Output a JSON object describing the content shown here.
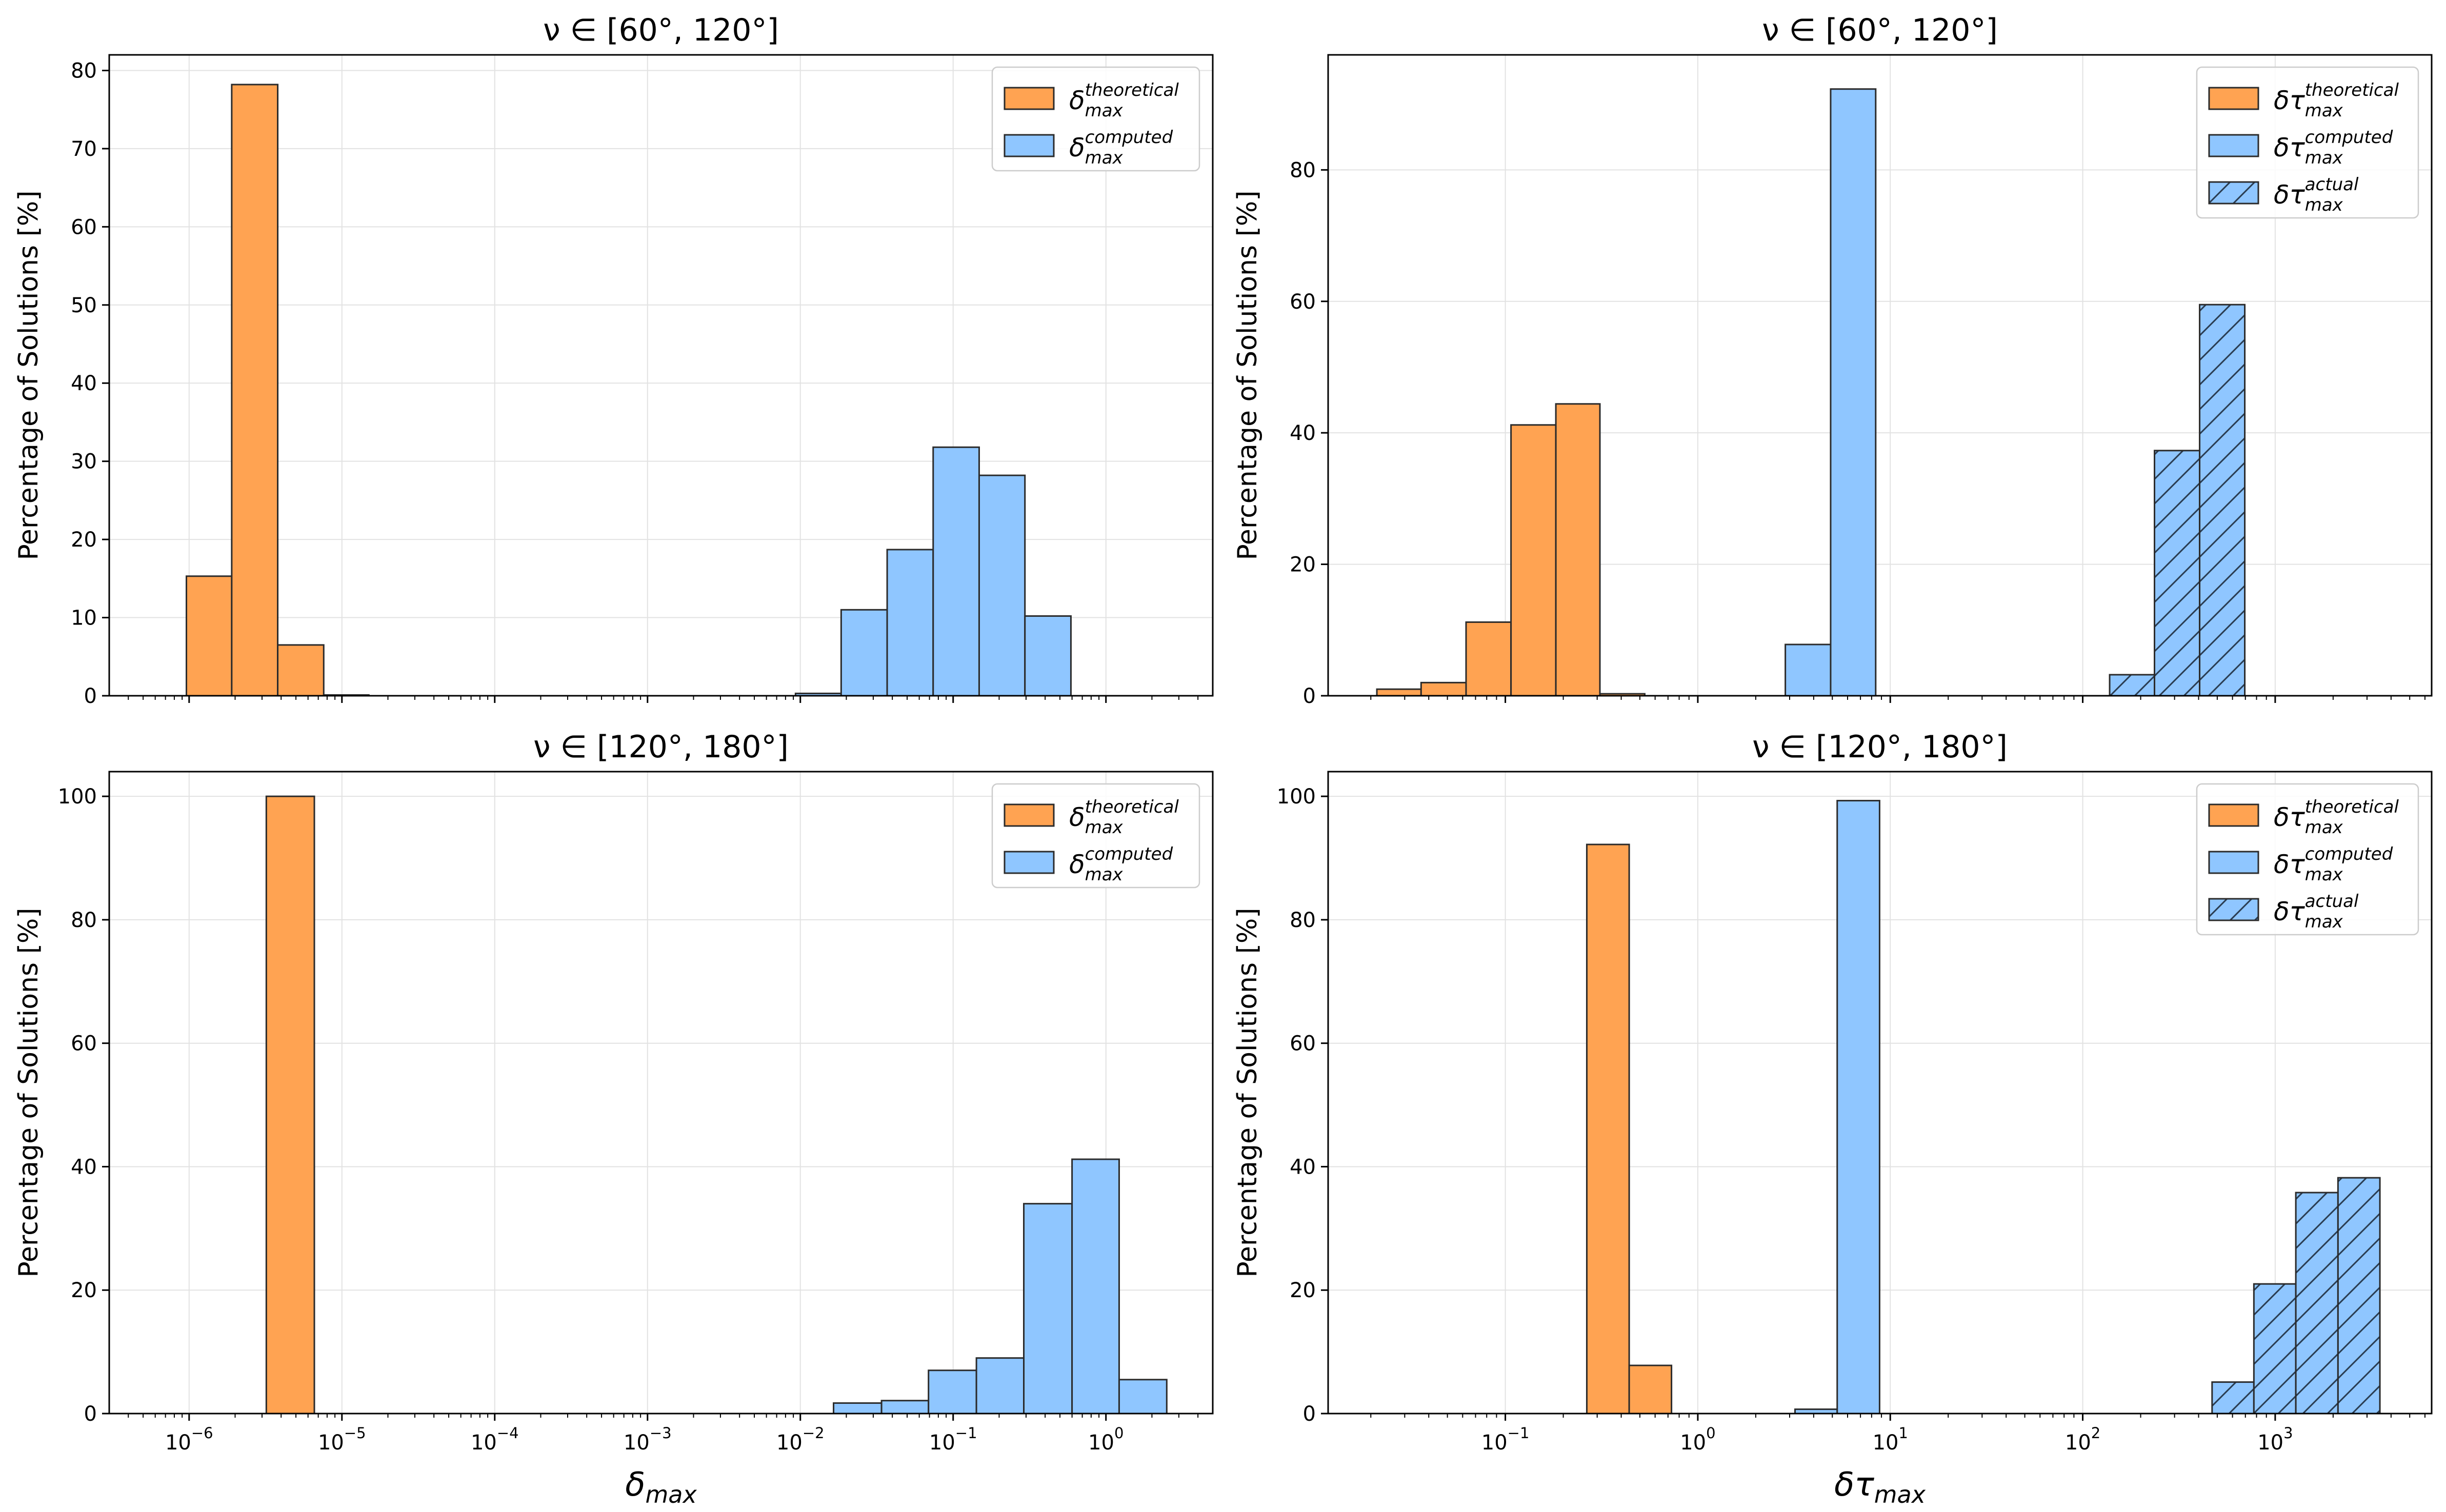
{
  "chart_data": [
    {
      "id": "top-left",
      "type": "bar",
      "title": "ν ∈ [60°, 120°]",
      "xlabel": "",
      "ylabel": "Percentage of Solutions [%]",
      "xscale": "log",
      "xlim": [
        3e-07,
        5.0
      ],
      "ylim": [
        0,
        82
      ],
      "yticks": [
        "0",
        "10",
        "20",
        "30",
        "40",
        "50",
        "60",
        "70",
        "80"
      ],
      "ytick_values": [
        0,
        10,
        20,
        30,
        40,
        50,
        60,
        70,
        80
      ],
      "xticks": [
        "10^-6",
        "10^-5",
        "10^-4",
        "10^-3",
        "10^-2",
        "10^-1",
        "10^0"
      ],
      "xtick_values": [
        1e-06,
        1e-05,
        0.0001,
        0.001,
        0.01,
        0.1,
        1
      ],
      "show_xtick_labels": false,
      "grid": true,
      "legend_position": "top-right",
      "series": [
        {
          "name": "δ_max^theoretical",
          "color": "#ffa352",
          "hatch": false,
          "bins": [
            [
              9.6e-07,
              1.9e-06,
              15.3
            ],
            [
              1.9e-06,
              3.8e-06,
              78.2
            ],
            [
              3.8e-06,
              7.6e-06,
              6.5
            ],
            [
              7.6e-06,
              1.5e-05,
              0.1
            ]
          ]
        },
        {
          "name": "δ_max^computed",
          "color": "#8fc6ff",
          "hatch": false,
          "bins": [
            [
              0.0093,
              0.0185,
              0.3
            ],
            [
              0.0185,
              0.037,
              11.0
            ],
            [
              0.037,
              0.074,
              18.7
            ],
            [
              0.074,
              0.148,
              31.8
            ],
            [
              0.148,
              0.295,
              28.2
            ],
            [
              0.295,
              0.59,
              10.2
            ]
          ]
        }
      ],
      "legend": [
        {
          "base": "δ",
          "sup": "theoretical",
          "sub": "max",
          "color": "#ffa352",
          "hatch": false
        },
        {
          "base": "δ",
          "sup": "computed",
          "sub": "max",
          "color": "#8fc6ff",
          "hatch": false
        }
      ]
    },
    {
      "id": "top-right",
      "type": "bar",
      "title": "ν ∈ [60°, 120°]",
      "xlabel": "",
      "ylabel": "Percentage of Solutions [%]",
      "xscale": "log",
      "xlim": [
        0.012,
        6500
      ],
      "ylim": [
        0,
        97.5
      ],
      "yticks": [
        "0",
        "20",
        "40",
        "60",
        "80"
      ],
      "ytick_values": [
        0,
        20,
        40,
        60,
        80
      ],
      "xticks": [
        "10^-1",
        "10^0",
        "10^1",
        "10^2",
        "10^3"
      ],
      "xtick_values": [
        0.1,
        1,
        10,
        100,
        1000
      ],
      "show_xtick_labels": false,
      "grid": true,
      "legend_position": "top-right",
      "series": [
        {
          "name": "δτ_max^theoretical",
          "color": "#ffa352",
          "hatch": false,
          "bins": [
            [
              0.0215,
              0.0365,
              1.0
            ],
            [
              0.0365,
              0.0625,
              2.0
            ],
            [
              0.0625,
              0.107,
              11.2
            ],
            [
              0.107,
              0.183,
              41.2
            ],
            [
              0.183,
              0.31,
              44.4
            ],
            [
              0.31,
              0.53,
              0.3
            ]
          ]
        },
        {
          "name": "δτ_max^computed",
          "color": "#8fc6ff",
          "hatch": false,
          "bins": [
            [
              2.85,
              4.9,
              7.8
            ],
            [
              4.9,
              8.4,
              92.3
            ]
          ]
        },
        {
          "name": "δτ_max^actual",
          "color": "#8fc6ff",
          "hatch": true,
          "bins": [
            [
              138,
              236,
              3.2
            ],
            [
              236,
              405,
              37.3
            ],
            [
              405,
              695,
              59.5
            ]
          ]
        }
      ],
      "legend": [
        {
          "base": "δτ",
          "sup": "theoretical",
          "sub": "max",
          "color": "#ffa352",
          "hatch": false
        },
        {
          "base": "δτ",
          "sup": "computed",
          "sub": "max",
          "color": "#8fc6ff",
          "hatch": false
        },
        {
          "base": "δτ",
          "sup": "actual",
          "sub": "max",
          "color": "#8fc6ff",
          "hatch": true
        }
      ]
    },
    {
      "id": "bottom-left",
      "type": "bar",
      "title": "ν ∈ [120°, 180°]",
      "xlabel": "δ_max",
      "ylabel": "Percentage of Solutions [%]",
      "xscale": "log",
      "xlim": [
        3e-07,
        5.0
      ],
      "ylim": [
        0,
        104
      ],
      "yticks": [
        "0",
        "20",
        "40",
        "60",
        "80",
        "100"
      ],
      "ytick_values": [
        0,
        20,
        40,
        60,
        80,
        100
      ],
      "xticks": [
        "10^-6",
        "10^-5",
        "10^-4",
        "10^-3",
        "10^-2",
        "10^-1",
        "10^0"
      ],
      "xtick_values": [
        1e-06,
        1e-05,
        0.0001,
        0.001,
        0.01,
        0.1,
        1
      ],
      "show_xtick_labels": true,
      "grid": true,
      "legend_position": "top-right",
      "series": [
        {
          "name": "δ_max^theoretical",
          "color": "#ffa352",
          "hatch": false,
          "bins": [
            [
              3.2e-06,
              6.6e-06,
              100.0
            ]
          ]
        },
        {
          "name": "δ_max^computed",
          "color": "#8fc6ff",
          "hatch": false,
          "bins": [
            [
              0.0165,
              0.034,
              1.7
            ],
            [
              0.034,
              0.069,
              2.1
            ],
            [
              0.069,
              0.142,
              7.0
            ],
            [
              0.142,
              0.29,
              9.0
            ],
            [
              0.29,
              0.6,
              34.0
            ],
            [
              0.6,
              1.22,
              41.2
            ],
            [
              1.22,
              2.5,
              5.5
            ]
          ]
        }
      ],
      "legend": [
        {
          "base": "δ",
          "sup": "theoretical",
          "sub": "max",
          "color": "#ffa352",
          "hatch": false
        },
        {
          "base": "δ",
          "sup": "computed",
          "sub": "max",
          "color": "#8fc6ff",
          "hatch": false
        }
      ]
    },
    {
      "id": "bottom-right",
      "type": "bar",
      "title": "ν ∈ [120°, 180°]",
      "xlabel": "δτ_max",
      "ylabel": "Percentage of Solutions [%]",
      "xscale": "log",
      "xlim": [
        0.012,
        6500
      ],
      "ylim": [
        0,
        104
      ],
      "yticks": [
        "0",
        "20",
        "40",
        "60",
        "80",
        "100"
      ],
      "ytick_values": [
        0,
        20,
        40,
        60,
        80,
        100
      ],
      "xticks": [
        "10^-1",
        "10^0",
        "10^1",
        "10^2",
        "10^3"
      ],
      "xtick_values": [
        0.1,
        1,
        10,
        100,
        1000
      ],
      "show_xtick_labels": true,
      "grid": true,
      "legend_position": "top-right",
      "series": [
        {
          "name": "δτ_max^theoretical",
          "color": "#ffa352",
          "hatch": false,
          "bins": [
            [
              0.265,
              0.44,
              92.2
            ],
            [
              0.44,
              0.73,
              7.8
            ]
          ]
        },
        {
          "name": "δτ_max^computed",
          "color": "#8fc6ff",
          "hatch": false,
          "bins": [
            [
              3.2,
              5.3,
              0.7
            ],
            [
              5.3,
              8.8,
              99.3
            ]
          ]
        },
        {
          "name": "δτ_max^actual",
          "color": "#8fc6ff",
          "hatch": true,
          "bins": [
            [
              470,
              775,
              5.1
            ],
            [
              775,
              1280,
              21.0
            ],
            [
              1280,
              2120,
              35.8
            ],
            [
              2120,
              3500,
              38.2
            ]
          ]
        }
      ],
      "legend": [
        {
          "base": "δτ",
          "sup": "theoretical",
          "sub": "max",
          "color": "#ffa352",
          "hatch": false
        },
        {
          "base": "δτ",
          "sup": "computed",
          "sub": "max",
          "color": "#8fc6ff",
          "hatch": false
        },
        {
          "base": "δτ",
          "sup": "actual",
          "sub": "max",
          "color": "#8fc6ff",
          "hatch": true
        }
      ]
    }
  ]
}
